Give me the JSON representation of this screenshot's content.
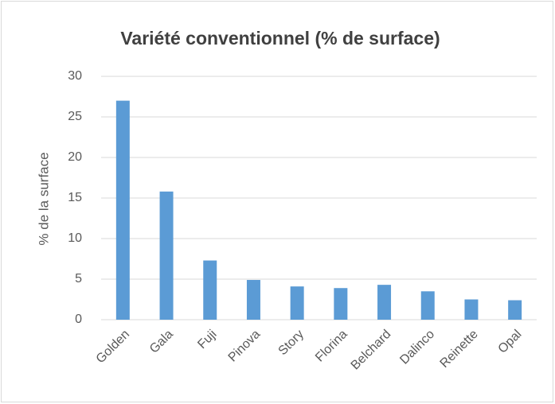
{
  "chart_data": {
    "type": "bar",
    "title": "Variété conventionnel (% de surface)",
    "y_label": "% de la surface",
    "categories": [
      "Golden",
      "Gala",
      "Fuji",
      "Pinova",
      "Story",
      "Florina",
      "Belchard",
      "Dalinco",
      "Reinette",
      "Opal"
    ],
    "values": [
      27,
      15.8,
      7.3,
      4.9,
      4.1,
      3.9,
      4.3,
      3.5,
      2.5,
      2.4
    ],
    "color": "#5b9bd5",
    "ylim": [
      0,
      30
    ],
    "yticks": [
      0,
      5,
      10,
      15,
      20,
      25,
      30
    ],
    "grid": true
  }
}
